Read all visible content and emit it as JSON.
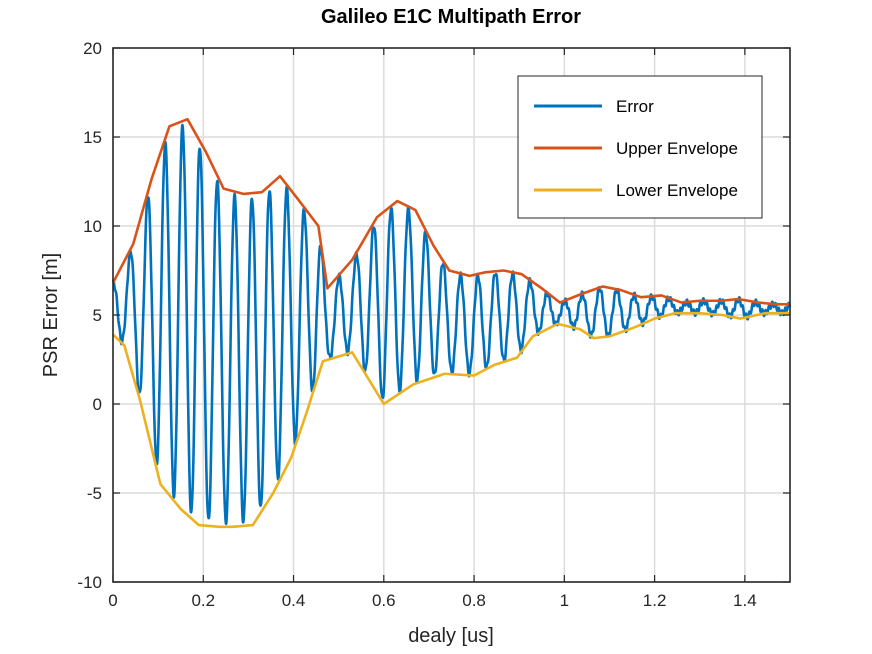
{
  "chart_data": {
    "type": "line",
    "title": "Galileo E1C Multipath Error",
    "xlabel": "dealy [us]",
    "ylabel": "PSR Error [m]",
    "xlim": [
      0,
      1.5
    ],
    "ylim": [
      -10,
      20
    ],
    "xticks": [
      0,
      0.2,
      0.4,
      0.6,
      0.8,
      1,
      1.2,
      1.4
    ],
    "xtick_labels": [
      "0",
      "0.2",
      "0.4",
      "0.6",
      "0.8",
      "1",
      "1.2",
      "1.4"
    ],
    "yticks": [
      -10,
      -5,
      0,
      5,
      10,
      15,
      20
    ],
    "ytick_labels": [
      "-10",
      "-5",
      "0",
      "5",
      "10",
      "15",
      "20"
    ],
    "grid": true,
    "legend_position": "top-right",
    "colors": {
      "error": "#0072BD",
      "upper": "#D95319",
      "lower": "#EDB120"
    },
    "series": [
      {
        "name": "Error",
        "kind": "oscillation",
        "period": 0.0385,
        "noise_amplitude": 0.15
      },
      {
        "name": "Upper Envelope",
        "x": [
          0,
          0.045,
          0.085,
          0.125,
          0.165,
          0.205,
          0.245,
          0.29,
          0.33,
          0.37,
          0.41,
          0.455,
          0.475,
          0.53,
          0.585,
          0.63,
          0.67,
          0.71,
          0.745,
          0.79,
          0.825,
          0.865,
          0.905,
          0.95,
          0.99,
          1.04,
          1.085,
          1.125,
          1.17,
          1.215,
          1.26,
          1.3,
          1.35,
          1.385,
          1.43,
          1.47,
          1.5
        ],
        "values": [
          6.8,
          9.0,
          12.6,
          15.6,
          16.0,
          14.2,
          12.1,
          11.8,
          11.9,
          12.8,
          11.5,
          10.0,
          6.5,
          8.1,
          10.5,
          11.4,
          10.9,
          8.9,
          7.5,
          7.2,
          7.4,
          7.5,
          7.3,
          6.5,
          5.7,
          6.2,
          6.6,
          6.4,
          6.0,
          6.1,
          5.7,
          5.8,
          5.8,
          5.9,
          5.7,
          5.6,
          5.6
        ]
      },
      {
        "name": "Lower Envelope",
        "x": [
          0,
          0.025,
          0.06,
          0.105,
          0.15,
          0.19,
          0.235,
          0.265,
          0.31,
          0.355,
          0.395,
          0.43,
          0.465,
          0.53,
          0.6,
          0.665,
          0.735,
          0.8,
          0.845,
          0.895,
          0.93,
          0.985,
          1.035,
          1.065,
          1.1,
          1.155,
          1.2,
          1.245,
          1.3,
          1.35,
          1.39,
          1.445,
          1.5
        ],
        "values": [
          3.9,
          3.3,
          0.2,
          -4.5,
          -5.9,
          -6.8,
          -6.9,
          -6.9,
          -6.8,
          -5.0,
          -3.0,
          -0.4,
          2.4,
          2.9,
          0.0,
          1.1,
          1.7,
          1.6,
          2.2,
          2.6,
          3.8,
          4.5,
          4.2,
          3.7,
          3.8,
          4.3,
          4.8,
          5.1,
          5.1,
          5.0,
          4.8,
          5.1,
          5.1
        ]
      }
    ]
  }
}
